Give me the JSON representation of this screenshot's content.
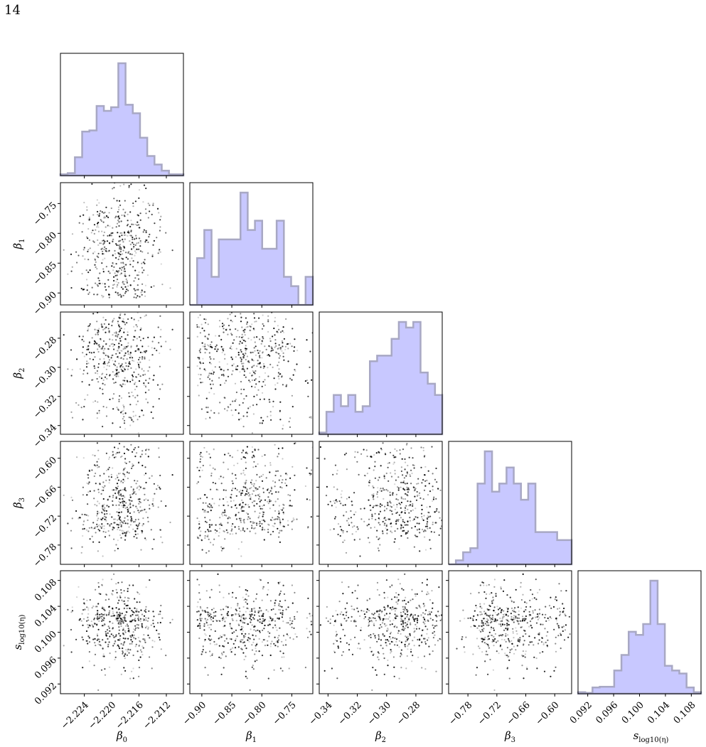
{
  "page": {
    "number": "14"
  },
  "chart_data": {
    "type": "corner",
    "parameters": [
      {
        "key": "b0",
        "label_base": "β",
        "label_sub": "0",
        "label": "β0",
        "range": [
          -2.2275,
          -2.2095
        ],
        "ticks": [
          -2.224,
          -2.22,
          -2.216,
          -2.212
        ],
        "tick_labels": [
          "−2.224",
          "−2.220",
          "−2.216",
          "−2.212"
        ]
      },
      {
        "key": "b1",
        "label_base": "β",
        "label_sub": "1",
        "label": "β1",
        "range": [
          -0.92,
          -0.715
        ],
        "ticks": [
          -0.9,
          -0.85,
          -0.8,
          -0.75
        ],
        "tick_labels": [
          "−0.90",
          "−0.85",
          "−0.80",
          "−0.75"
        ]
      },
      {
        "key": "b2",
        "label_base": "β",
        "label_sub": "2",
        "label": "β2",
        "range": [
          -0.346,
          -0.262
        ],
        "ticks": [
          -0.34,
          -0.32,
          -0.3,
          -0.28
        ],
        "tick_labels": [
          "−0.34",
          "−0.32",
          "−0.30",
          "−0.28"
        ]
      },
      {
        "key": "b3",
        "label_base": "β",
        "label_sub": "3",
        "label": "β3",
        "range": [
          -0.82,
          -0.565
        ],
        "ticks": [
          -0.78,
          -0.72,
          -0.66,
          -0.6
        ],
        "tick_labels": [
          "−0.78",
          "−0.72",
          "−0.66",
          "−0.60"
        ]
      },
      {
        "key": "s",
        "label_base": "s",
        "label_sub": "log10(η)",
        "label": "slog10(η)",
        "range": [
          0.0905,
          0.1095
        ],
        "ticks": [
          0.092,
          0.096,
          0.1,
          0.104,
          0.108
        ],
        "tick_labels": [
          "0.092",
          "0.096",
          "0.100",
          "0.104",
          "0.108"
        ]
      }
    ],
    "histograms": [
      {
        "param": "b0",
        "edges": [
          -2.2275,
          -2.2095
        ],
        "counts": [
          1,
          2,
          15,
          36,
          37,
          57,
          53,
          56,
          92,
          58,
          51,
          31,
          16,
          9,
          4,
          1,
          1
        ]
      },
      {
        "param": "b1",
        "edges": [
          -0.92,
          -0.715
        ],
        "counts": [
          0,
          5,
          8,
          3,
          7,
          7,
          7,
          12,
          8,
          9,
          6,
          6,
          9,
          3,
          2,
          0,
          3
        ]
      },
      {
        "param": "b2",
        "edges": [
          -0.346,
          -0.262
        ],
        "counts": [
          0.3,
          4,
          7,
          5,
          7,
          4,
          5,
          13,
          14,
          14,
          17,
          20,
          19,
          20,
          11,
          9,
          7
        ]
      },
      {
        "param": "b3",
        "edges": [
          -0.82,
          -0.565
        ],
        "counts": [
          0,
          0.5,
          1.5,
          2,
          10,
          14,
          9,
          10,
          12,
          10,
          8,
          10,
          4,
          4,
          4,
          3,
          3
        ]
      },
      {
        "param": "s",
        "edges": [
          0.0905,
          0.1095
        ],
        "counts": [
          1,
          0.5,
          4,
          4.5,
          4.5,
          15,
          25,
          40,
          38,
          45,
          73,
          45,
          18,
          15,
          13,
          4,
          1
        ]
      }
    ],
    "scatter": {
      "point_color": "#000000",
      "point_opacity_range": [
        0.15,
        0.95
      ],
      "samples": 480
    },
    "hist_fill": "#c8c8ff",
    "hist_edge": "#a8a8c4",
    "grid": false,
    "legend": "none"
  }
}
